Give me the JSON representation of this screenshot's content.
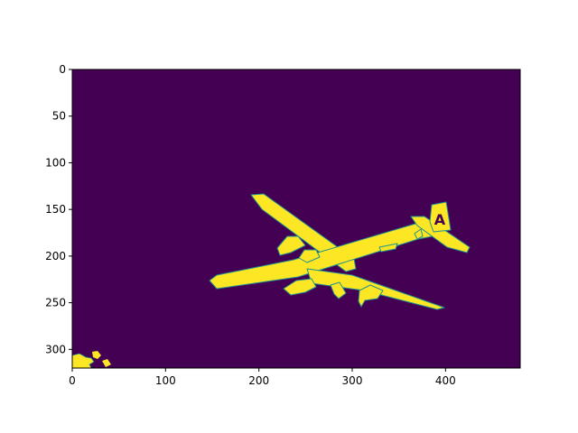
{
  "chart_data": {
    "type": "heatmap",
    "title": "",
    "xlabel": "",
    "ylabel": "",
    "xlim": [
      0,
      480
    ],
    "ylim": [
      320,
      0
    ],
    "x_ticks": [
      0,
      100,
      200,
      300,
      400
    ],
    "y_ticks": [
      0,
      50,
      100,
      150,
      200,
      250,
      300
    ],
    "image_size": {
      "rows": 320,
      "cols": 480
    },
    "grid": false,
    "legend": "none",
    "colormap": "viridis",
    "colors": {
      "background": "#440154",
      "foreground": "#fde725",
      "edge": "#21918c"
    },
    "content": "binary mask of an airplane in flight",
    "tail_letter": "A",
    "regions": [
      {
        "name": "airplane-silhouette",
        "value": 1
      },
      {
        "name": "bottom-left-patch",
        "value": 1
      }
    ]
  }
}
